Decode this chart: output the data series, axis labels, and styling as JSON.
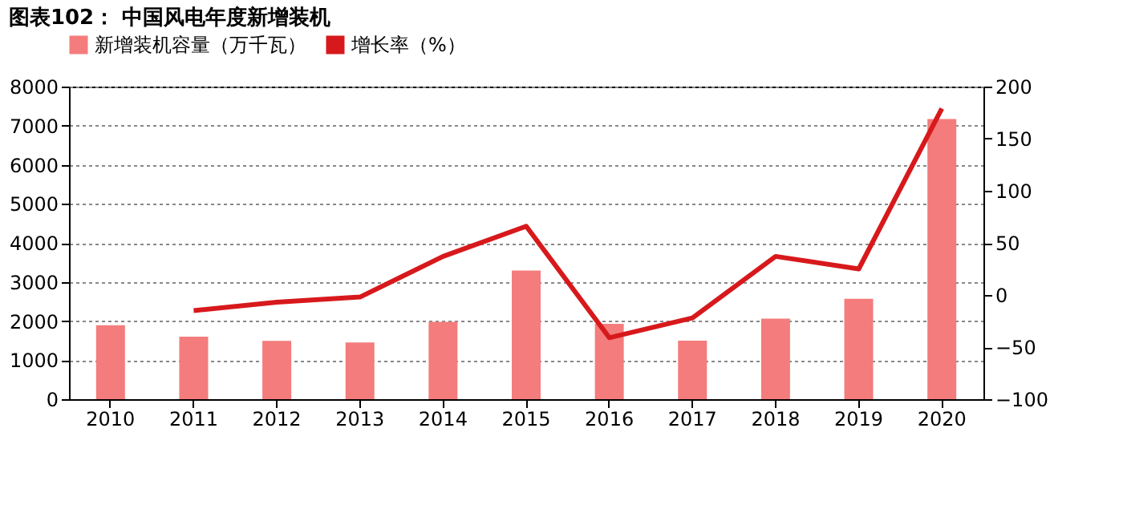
{
  "chart_data": {
    "type": "bar",
    "title": "图表102：  中国风电年度新增装机",
    "categories": [
      "2010",
      "2011",
      "2012",
      "2013",
      "2014",
      "2015",
      "2016",
      "2017",
      "2018",
      "2019",
      "2020"
    ],
    "series": [
      {
        "name": "新增装机容量（万千瓦）",
        "color": "#f47c7c",
        "values": [
          1890,
          1600,
          1490,
          1450,
          1980,
          3290,
          1930,
          1500,
          2060,
          2570,
          7170
        ]
      },
      {
        "name": "增长率（%）",
        "color": "#d7191c",
        "type": "line",
        "axis": "y2",
        "values": [
          null,
          -15,
          -7,
          -2,
          37,
          66,
          -41,
          -22,
          37,
          25,
          179
        ]
      }
    ],
    "ylim": [
      0,
      8000
    ],
    "yticks": [
      0,
      1000,
      2000,
      3000,
      4000,
      5000,
      6000,
      7000,
      8000
    ],
    "y2lim": [
      -100,
      200
    ],
    "y2ticks": [
      -100,
      -50,
      0,
      50,
      100,
      150,
      200
    ],
    "grid": "y",
    "legend": "top",
    "line_style": "solid",
    "marker": "none"
  }
}
